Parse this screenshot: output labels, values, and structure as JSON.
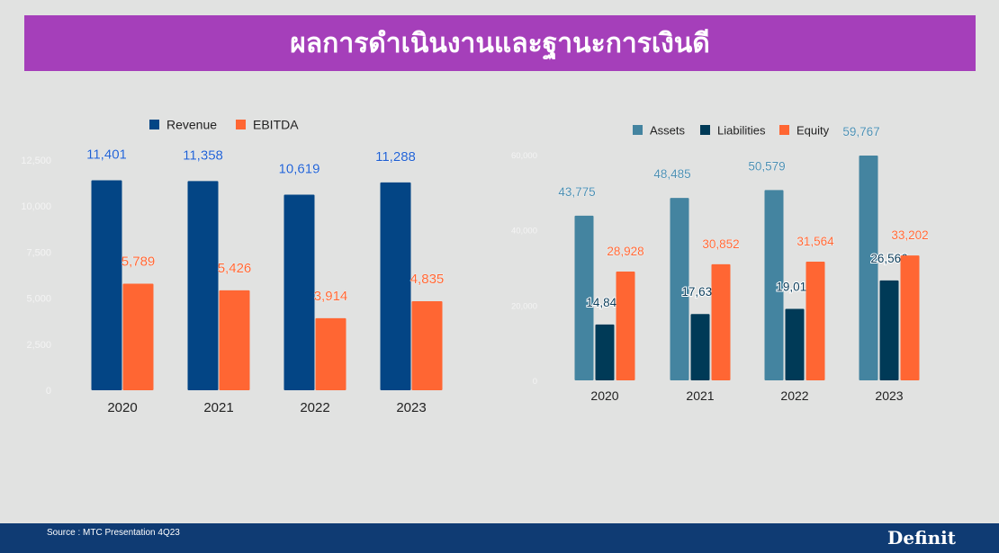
{
  "title": "ผลการดำเนินงานและฐานะการเงินดี",
  "footer": {
    "source": "Source : MTC Presentation 4Q23",
    "logo": "Definit"
  },
  "chart_data": [
    {
      "type": "bar",
      "categories": [
        "2020",
        "2021",
        "2022",
        "2023"
      ],
      "series": [
        {
          "name": "Revenue",
          "values": [
            11401,
            11358,
            10619,
            11288
          ],
          "color": "#034585",
          "label_color": "#1f5fd0"
        },
        {
          "name": "EBITDA",
          "values": [
            5789,
            5426,
            3914,
            4835
          ],
          "color": "#ff6633",
          "label_color": "#ff6633"
        }
      ],
      "yticks": [
        "0",
        "2,500",
        "5,000",
        "7,500",
        "10,000",
        "12,500"
      ],
      "ylim": [
        0,
        12500
      ],
      "legend": "top",
      "grid": false
    },
    {
      "type": "bar",
      "categories": [
        "2020",
        "2021",
        "2022",
        "2023"
      ],
      "series": [
        {
          "name": "Assets",
          "values": [
            43775,
            48485,
            50579,
            59767
          ],
          "color": "#4484a0",
          "label_color": "#4a8db0"
        },
        {
          "name": "Liabilities",
          "values": [
            14847,
            17634,
            19015,
            26566
          ],
          "color": "#003a57",
          "label_color": "#0c3d5a"
        },
        {
          "name": "Equity",
          "values": [
            28928,
            30852,
            31564,
            33202
          ],
          "color": "#ff6633",
          "label_color": "#ff6633"
        }
      ],
      "yticks": [
        "0",
        "20,000",
        "40,000",
        "60,000"
      ],
      "ylim": [
        0,
        60000
      ],
      "legend": "top",
      "grid": false
    }
  ]
}
